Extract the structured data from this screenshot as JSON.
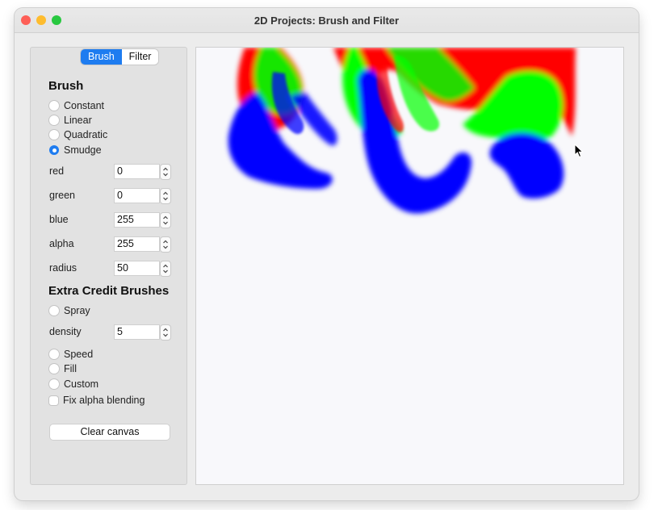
{
  "window": {
    "title": "2D Projects: Brush and Filter"
  },
  "tabs": [
    {
      "label": "Brush",
      "active": true
    },
    {
      "label": "Filter",
      "active": false
    }
  ],
  "brush": {
    "heading": "Brush",
    "types": [
      {
        "label": "Constant",
        "checked": false
      },
      {
        "label": "Linear",
        "checked": false
      },
      {
        "label": "Quadratic",
        "checked": false
      },
      {
        "label": "Smudge",
        "checked": true
      }
    ],
    "fields": [
      {
        "label": "red",
        "value": "0"
      },
      {
        "label": "green",
        "value": "0"
      },
      {
        "label": "blue",
        "value": "255"
      },
      {
        "label": "alpha",
        "value": "255"
      },
      {
        "label": "radius",
        "value": "50"
      }
    ]
  },
  "extra": {
    "heading": "Extra Credit Brushes",
    "spray_label": "Spray",
    "density_label": "density",
    "density_value": "5",
    "options": [
      {
        "label": "Speed",
        "checked": false
      },
      {
        "label": "Fill",
        "checked": false
      },
      {
        "label": "Custom",
        "checked": false
      }
    ],
    "fix_alpha_label": "Fix alpha blending",
    "fix_alpha_checked": false
  },
  "clear_button": "Clear canvas",
  "colors": {
    "accent": "#1e7cf0",
    "paint_red": "#ff0000",
    "paint_green": "#00ff00",
    "paint_blue": "#0000ff",
    "canvas_bg": "#f8f8fb"
  }
}
